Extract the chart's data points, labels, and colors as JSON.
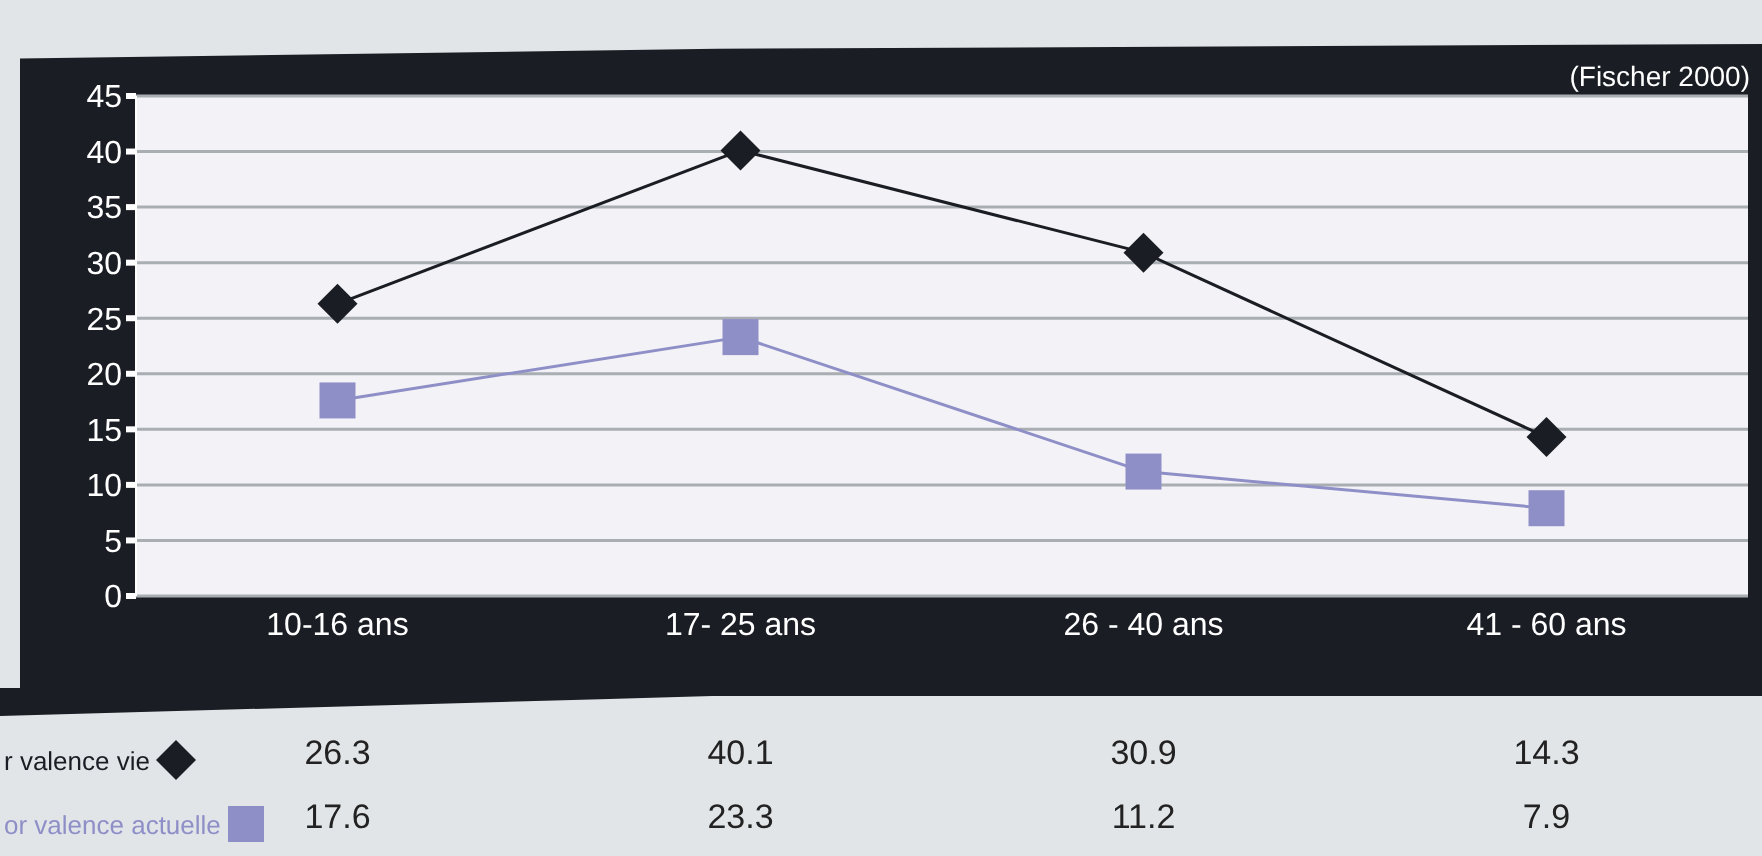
{
  "chart_data": {
    "type": "line",
    "annotations": [
      "(Fischer 2000)"
    ],
    "categories": [
      "10-16 ans",
      "17- 25 ans",
      "26 - 40 ans",
      "41 - 60 ans"
    ],
    "series": [
      {
        "name": "r valence vie",
        "color": "#1a1e24",
        "marker": "diamond",
        "values": [
          26.3,
          40.1,
          30.9,
          14.3
        ]
      },
      {
        "name": "or valence actuelle",
        "color": "#8f8fc8",
        "marker": "square",
        "values": [
          17.6,
          23.3,
          11.2,
          7.9
        ]
      }
    ],
    "ylim": [
      0,
      45
    ],
    "yticks": [
      0,
      5,
      10,
      15,
      20,
      25,
      30,
      35,
      40,
      45
    ],
    "grid": "y",
    "legend": "bottom left",
    "data_labels": true
  }
}
